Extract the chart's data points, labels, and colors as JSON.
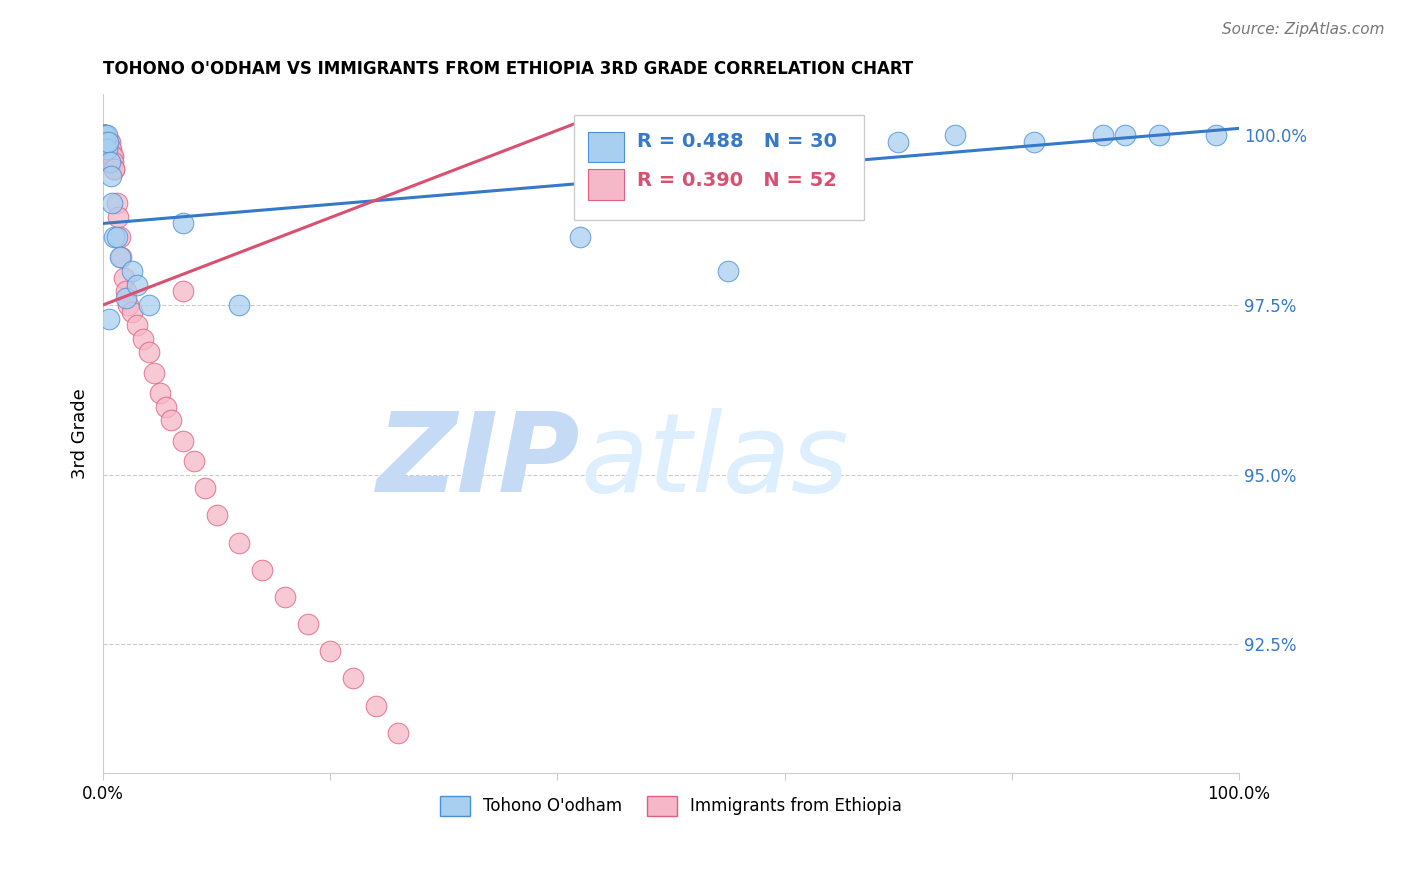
{
  "title": "TOHONO O'ODHAM VS IMMIGRANTS FROM ETHIOPIA 3RD GRADE CORRELATION CHART",
  "source": "Source: ZipAtlas.com",
  "ylabel": "3rd Grade",
  "blue_label": "Tohono O'odham",
  "pink_label": "Immigrants from Ethiopia",
  "blue_R": 0.488,
  "blue_N": 30,
  "pink_R": 0.39,
  "pink_N": 52,
  "blue_color": "#a8cff0",
  "pink_color": "#f5b8c8",
  "blue_edge_color": "#4a90d9",
  "pink_edge_color": "#e06080",
  "blue_line_color": "#3579c8",
  "pink_line_color": "#d95070",
  "watermark_zip": "ZIP",
  "watermark_atlas": "atlas",
  "watermark_color": "#ddeeff",
  "xlim": [
    0.0,
    1.0
  ],
  "ylim": [
    0.906,
    1.006
  ],
  "ytick_vals": [
    0.925,
    0.95,
    0.975,
    1.0
  ],
  "ytick_labels": [
    "92.5%",
    "95.0%",
    "97.5%",
    "100.0%"
  ],
  "blue_x": [
    0.001,
    0.001,
    0.002,
    0.002,
    0.003,
    0.003,
    0.004,
    0.005,
    0.006,
    0.007,
    0.008,
    0.01,
    0.012,
    0.015,
    0.02,
    0.025,
    0.03,
    0.04,
    0.07,
    0.12,
    0.42,
    0.55,
    0.63,
    0.7,
    0.75,
    0.82,
    0.88,
    0.9,
    0.93,
    0.98
  ],
  "blue_y": [
    1.0,
    1.0,
    1.0,
    0.999,
    1.0,
    0.998,
    0.999,
    0.973,
    0.996,
    0.994,
    0.99,
    0.985,
    0.985,
    0.982,
    0.976,
    0.98,
    0.978,
    0.975,
    0.987,
    0.975,
    0.985,
    0.98,
    0.998,
    0.999,
    1.0,
    0.999,
    1.0,
    1.0,
    1.0,
    1.0
  ],
  "pink_x": [
    0.001,
    0.001,
    0.001,
    0.002,
    0.002,
    0.002,
    0.003,
    0.003,
    0.003,
    0.004,
    0.004,
    0.005,
    0.005,
    0.006,
    0.006,
    0.006,
    0.007,
    0.007,
    0.008,
    0.008,
    0.009,
    0.009,
    0.01,
    0.01,
    0.012,
    0.013,
    0.015,
    0.016,
    0.018,
    0.02,
    0.022,
    0.025,
    0.03,
    0.035,
    0.04,
    0.045,
    0.05,
    0.055,
    0.06,
    0.07,
    0.08,
    0.09,
    0.1,
    0.12,
    0.14,
    0.16,
    0.18,
    0.2,
    0.22,
    0.24,
    0.26,
    0.07
  ],
  "pink_y": [
    1.0,
    1.0,
    0.999,
    1.0,
    1.0,
    0.999,
    0.999,
    0.999,
    0.998,
    0.999,
    0.998,
    0.999,
    0.998,
    0.999,
    0.998,
    0.998,
    0.998,
    0.997,
    0.997,
    0.997,
    0.997,
    0.996,
    0.995,
    0.995,
    0.99,
    0.988,
    0.985,
    0.982,
    0.979,
    0.977,
    0.975,
    0.974,
    0.972,
    0.97,
    0.968,
    0.965,
    0.962,
    0.96,
    0.958,
    0.955,
    0.952,
    0.948,
    0.944,
    0.94,
    0.936,
    0.932,
    0.928,
    0.924,
    0.92,
    0.916,
    0.912,
    0.977
  ],
  "blue_line_x0": 0.0,
  "blue_line_y0": 0.987,
  "blue_line_x1": 1.0,
  "blue_line_y1": 1.001,
  "pink_line_x0": 0.0,
  "pink_line_y0": 0.975,
  "pink_line_x1": 0.42,
  "pink_line_y1": 1.002
}
